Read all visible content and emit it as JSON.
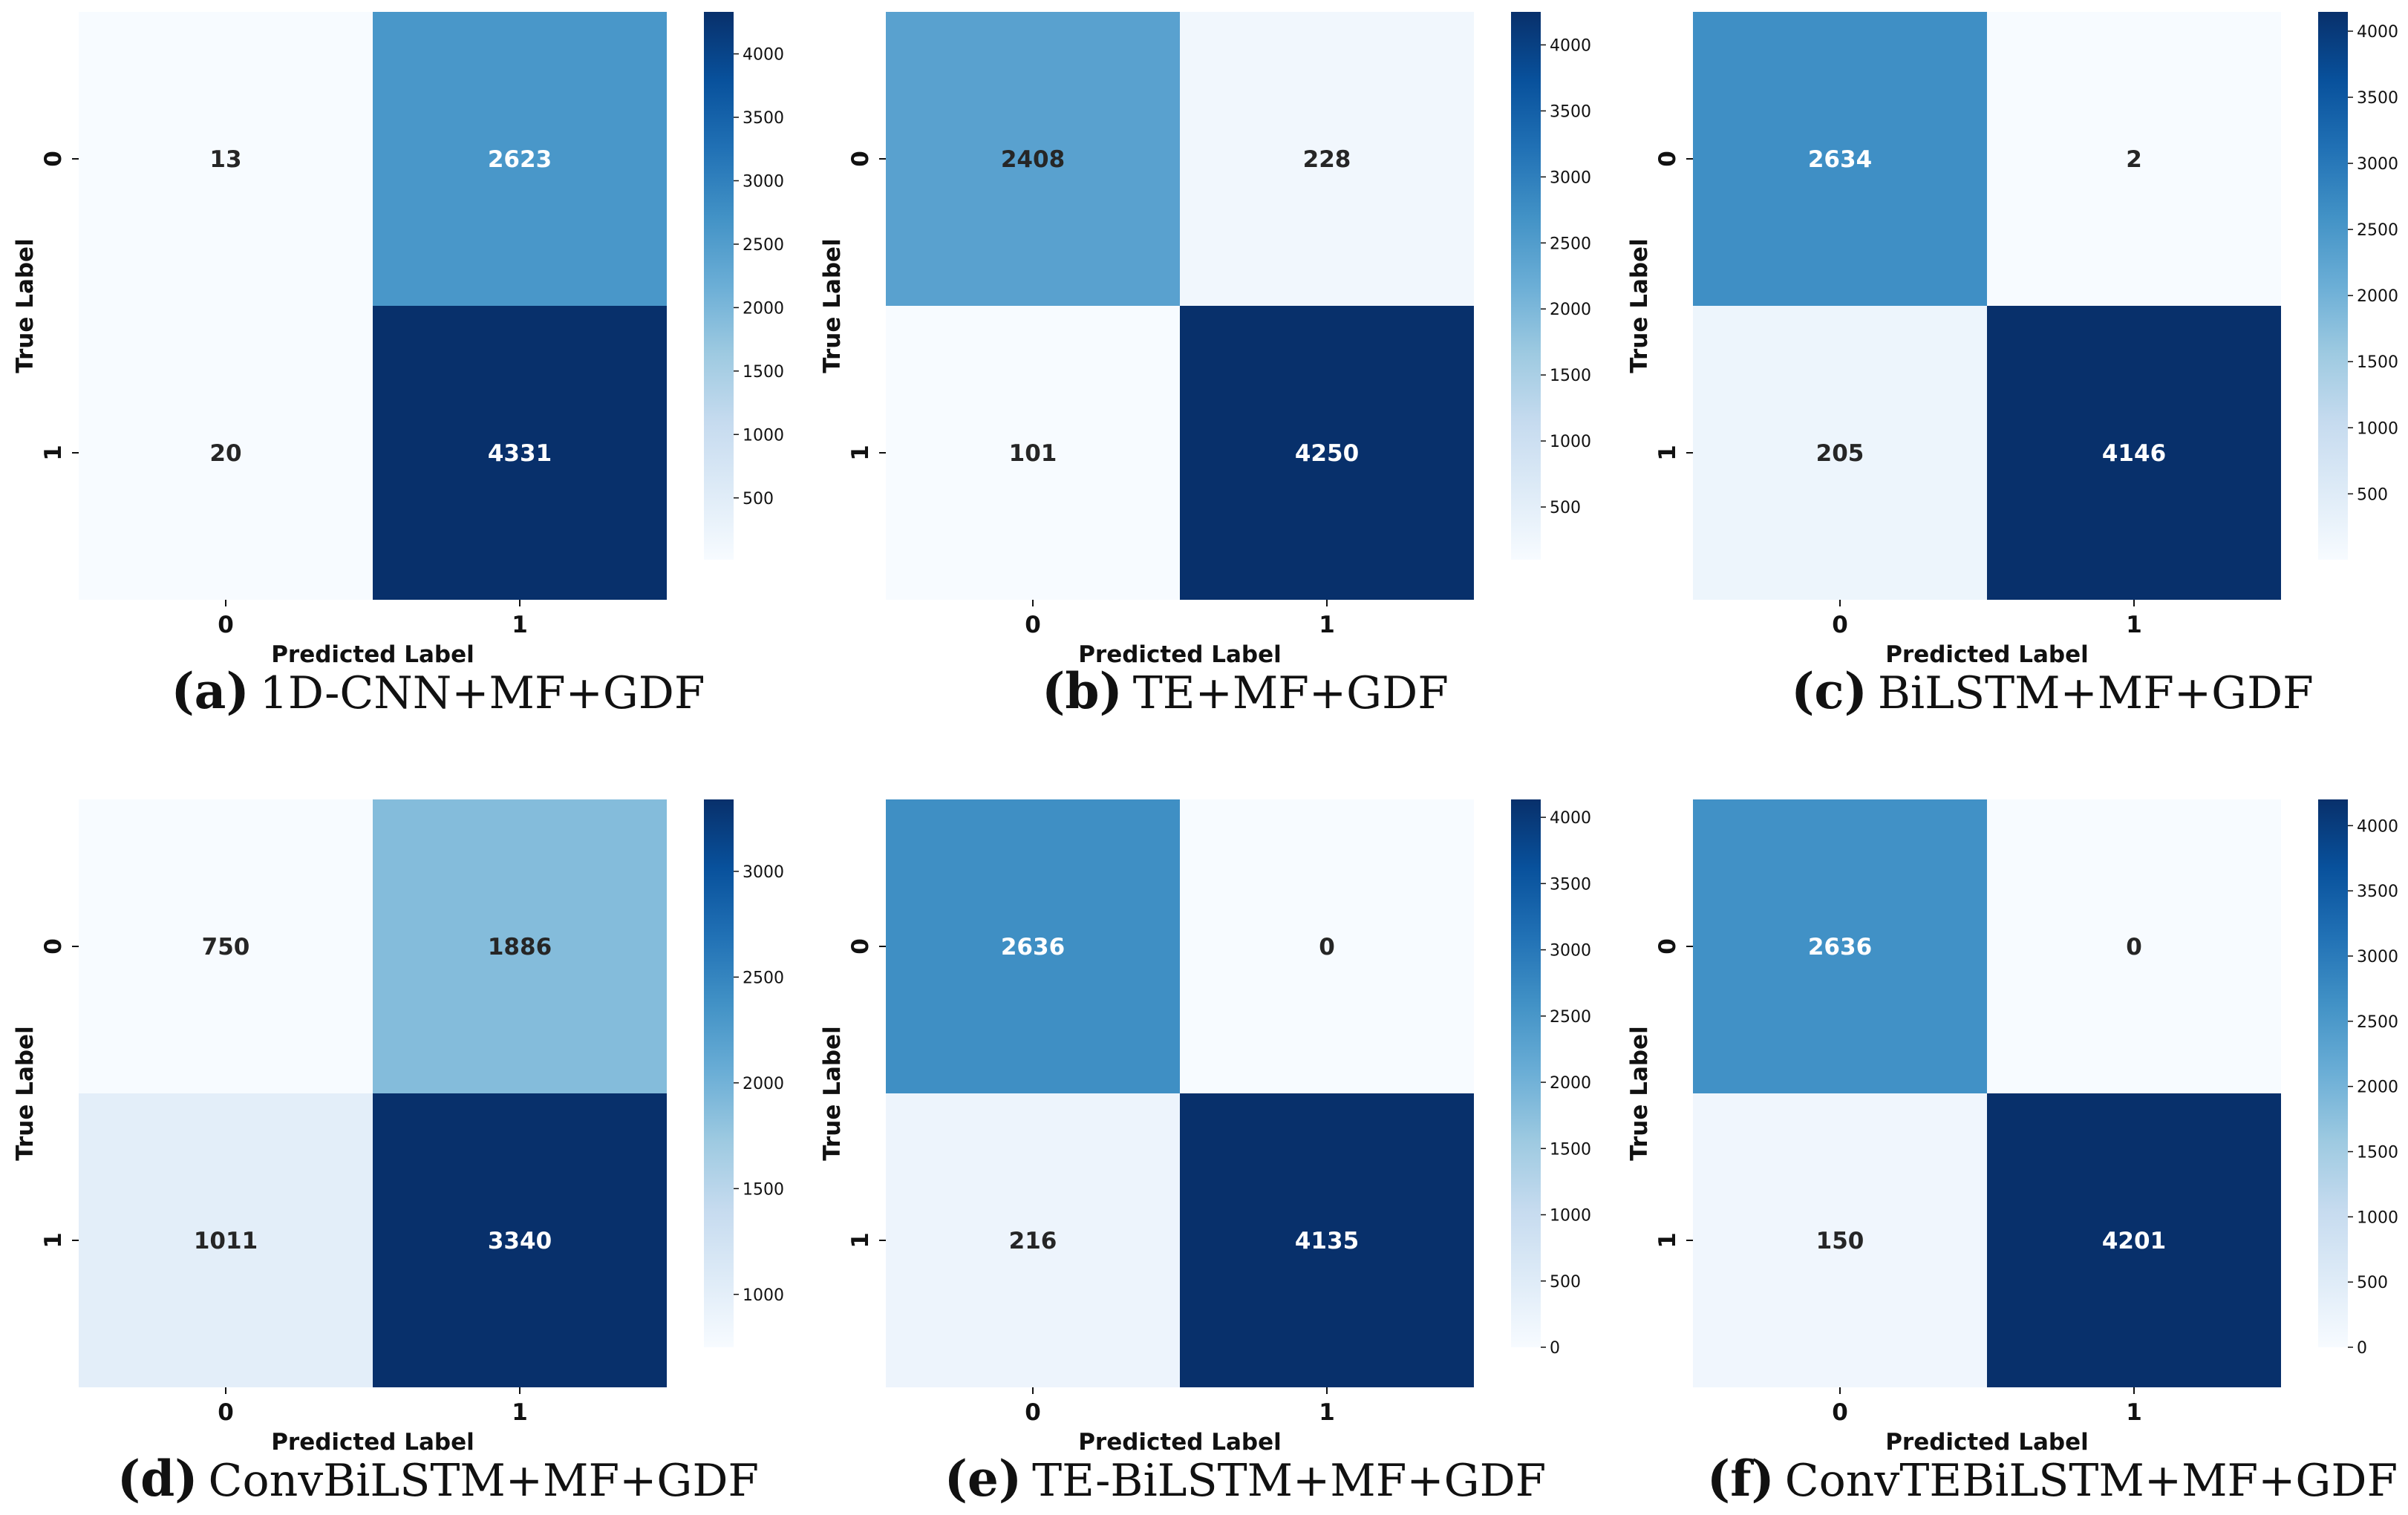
{
  "chart_data": [
    {
      "type": "heatmap",
      "caption_letter": "(a)",
      "caption_text": "1D-CNN+MF+GDF",
      "xlabel": "Predicted Label",
      "ylabel": "True Label",
      "x_ticks": [
        "0",
        "1"
      ],
      "y_ticks": [
        "0",
        "1"
      ],
      "values": [
        [
          13,
          2623
        ],
        [
          20,
          4331
        ]
      ],
      "colorbar_range": [
        13,
        4331
      ],
      "colorbar_ticks": [
        500,
        1000,
        1500,
        2000,
        2500,
        3000,
        3500,
        4000
      ],
      "colorbar_tick_labels": [
        "500",
        "1000",
        "1500",
        "2000",
        "2500",
        "3000",
        "3500",
        "4000"
      ],
      "colormap": "Blues"
    },
    {
      "type": "heatmap",
      "caption_letter": "(b)",
      "caption_text": "TE+MF+GDF",
      "xlabel": "Predicted Label",
      "ylabel": "True Label",
      "x_ticks": [
        "0",
        "1"
      ],
      "y_ticks": [
        "0",
        "1"
      ],
      "values": [
        [
          2408,
          228
        ],
        [
          101,
          4250
        ]
      ],
      "colorbar_range": [
        101,
        4250
      ],
      "colorbar_ticks": [
        500,
        1000,
        1500,
        2000,
        2500,
        3000,
        3500,
        4000
      ],
      "colorbar_tick_labels": [
        "500",
        "1000",
        "1500",
        "2000",
        "2500",
        "3000",
        "3500",
        "4000"
      ],
      "colormap": "Blues"
    },
    {
      "type": "heatmap",
      "caption_letter": "(c)",
      "caption_text": "BiLSTM+MF+GDF",
      "xlabel": "Predicted Label",
      "ylabel": "True Label",
      "x_ticks": [
        "0",
        "1"
      ],
      "y_ticks": [
        "0",
        "1"
      ],
      "values": [
        [
          2634,
          2
        ],
        [
          205,
          4146
        ]
      ],
      "colorbar_range": [
        2,
        4146
      ],
      "colorbar_ticks": [
        500,
        1000,
        1500,
        2000,
        2500,
        3000,
        3500,
        4000
      ],
      "colorbar_tick_labels": [
        "500",
        "1000",
        "1500",
        "2000",
        "2500",
        "3000",
        "3500",
        "4000"
      ],
      "colormap": "Blues"
    },
    {
      "type": "heatmap",
      "caption_letter": "(d)",
      "caption_text": "ConvBiLSTM+MF+GDF",
      "xlabel": "Predicted Label",
      "ylabel": "True Label",
      "x_ticks": [
        "0",
        "1"
      ],
      "y_ticks": [
        "0",
        "1"
      ],
      "values": [
        [
          750,
          1886
        ],
        [
          1011,
          3340
        ]
      ],
      "colorbar_range": [
        750,
        3340
      ],
      "colorbar_ticks": [
        1000,
        1500,
        2000,
        2500,
        3000
      ],
      "colorbar_tick_labels": [
        "1000",
        "1500",
        "2000",
        "2500",
        "3000"
      ],
      "colormap": "Blues"
    },
    {
      "type": "heatmap",
      "caption_letter": "(e)",
      "caption_text": "TE-BiLSTM+MF+GDF",
      "xlabel": "Predicted Label",
      "ylabel": "True Label",
      "x_ticks": [
        "0",
        "1"
      ],
      "y_ticks": [
        "0",
        "1"
      ],
      "values": [
        [
          2636,
          0
        ],
        [
          216,
          4135
        ]
      ],
      "colorbar_range": [
        0,
        4135
      ],
      "colorbar_ticks": [
        0,
        500,
        1000,
        1500,
        2000,
        2500,
        3000,
        3500,
        4000
      ],
      "colorbar_tick_labels": [
        "0",
        "500",
        "1000",
        "1500",
        "2000",
        "2500",
        "3000",
        "3500",
        "4000"
      ],
      "colormap": "Blues"
    },
    {
      "type": "heatmap",
      "caption_letter": "(f)",
      "caption_text": "ConvTEBiLSTM+MF+GDF",
      "xlabel": "Predicted Label",
      "ylabel": "True Label",
      "x_ticks": [
        "0",
        "1"
      ],
      "y_ticks": [
        "0",
        "1"
      ],
      "values": [
        [
          2636,
          0
        ],
        [
          150,
          4201
        ]
      ],
      "colorbar_range": [
        0,
        4201
      ],
      "colorbar_ticks": [
        0,
        500,
        1000,
        1500,
        2000,
        2500,
        3000,
        3500,
        4000
      ],
      "colorbar_tick_labels": [
        "0",
        "500",
        "1000",
        "1500",
        "2000",
        "2500",
        "3000",
        "3500",
        "4000"
      ],
      "colormap": "Blues"
    }
  ]
}
